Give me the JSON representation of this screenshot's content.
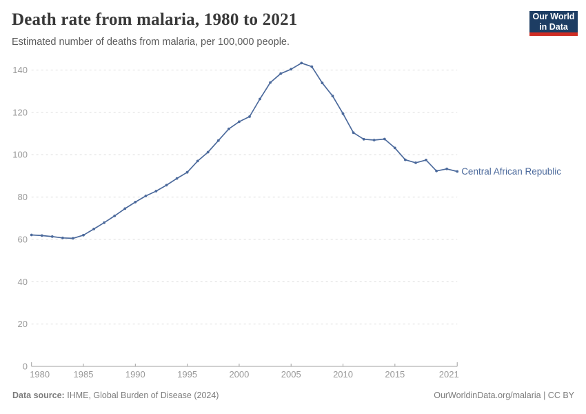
{
  "header": {
    "title": "Death rate from malaria, 1980 to 2021",
    "subtitle": "Estimated number of deaths from malaria, per 100,000 people.",
    "logo": {
      "line1": "Our World",
      "line2": "in Data"
    }
  },
  "footer": {
    "source_label": "Data source:",
    "source_text": "IHME, Global Burden of Disease (2024)",
    "right_text": "OurWorldinData.org/malaria | CC BY"
  },
  "colors": {
    "line": "#4c6a9c",
    "series_label": "#4c6a9c",
    "grid": "#dcdcdc",
    "axis": "#a0a0a0",
    "tick_text": "#999999",
    "logo_bg": "#1d3d63",
    "logo_red": "#cf2d24"
  },
  "chart_data": {
    "type": "line",
    "title": "Death rate from malaria, 1980 to 2021",
    "subtitle": "Estimated number of deaths from malaria, per 100,000 people.",
    "xlabel": "",
    "ylabel": "",
    "ylim": [
      0,
      140
    ],
    "xlim": [
      1980,
      2021
    ],
    "yticks": [
      0,
      20,
      40,
      60,
      80,
      100,
      120,
      140
    ],
    "xticks": [
      1980,
      1985,
      1990,
      1995,
      2000,
      2005,
      2010,
      2015,
      2021
    ],
    "grid": true,
    "grid_style": "dashed",
    "marker": "circle",
    "legend_position": "end-of-line-label",
    "x": [
      1980,
      1981,
      1982,
      1983,
      1984,
      1985,
      1986,
      1987,
      1988,
      1989,
      1990,
      1991,
      1992,
      1993,
      1994,
      1995,
      1996,
      1997,
      1998,
      1999,
      2000,
      2001,
      2002,
      2003,
      2004,
      2005,
      2006,
      2007,
      2008,
      2009,
      2010,
      2011,
      2012,
      2013,
      2014,
      2015,
      2016,
      2017,
      2018,
      2019,
      2020,
      2021
    ],
    "series": [
      {
        "name": "Central African Republic",
        "values": [
          62.1,
          61.8,
          61.3,
          60.7,
          60.5,
          62.0,
          64.9,
          67.9,
          71.1,
          74.5,
          77.6,
          80.5,
          82.8,
          85.6,
          88.8,
          91.7,
          97.0,
          101.2,
          106.7,
          112.2,
          115.6,
          118.0,
          126.3,
          134.1,
          138.3,
          140.4,
          143.3,
          141.6,
          133.9,
          127.7,
          119.4,
          110.4,
          107.3,
          106.9,
          107.4,
          103.2,
          97.6,
          96.2,
          97.5,
          92.3,
          93.3,
          92.1
        ]
      }
    ]
  }
}
